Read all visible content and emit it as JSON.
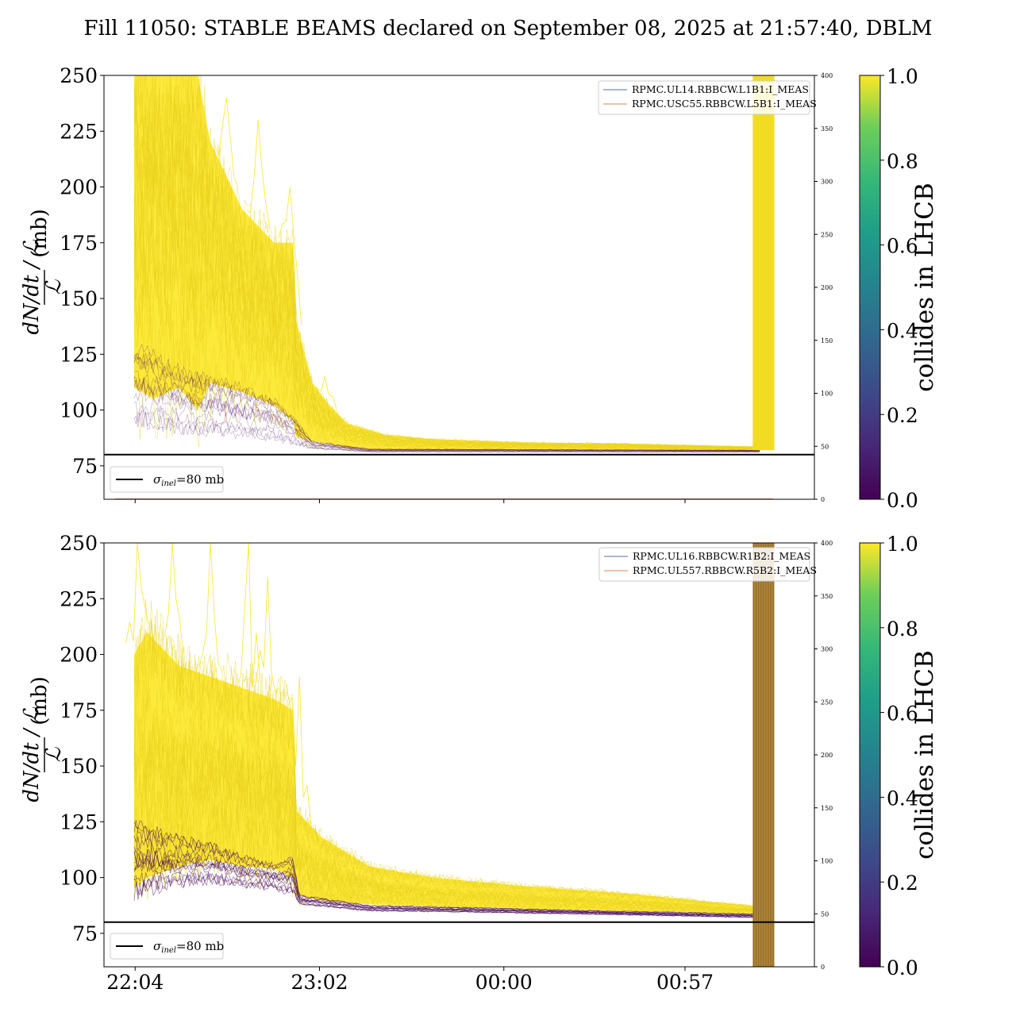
{
  "title": "Fill 11050: STABLE BEAMS declared on September 08, 2025 at 21:57:40, DBLM",
  "chart_data": {
    "type": "line",
    "title": "Fill 11050: STABLE BEAMS declared on September 08, 2025 at 21:57:40, DBLM",
    "x_tick_labels": [
      "22:04",
      "23:02",
      "00:00",
      "00:57"
    ],
    "x_ticks_minutes": [
      6.3,
      64.3,
      122.3,
      179.3
    ],
    "x_range_minutes": [
      -3.5,
      220
    ],
    "ylabel_fraction": "dN/dt / ℒ",
    "ylabel_unit": "(mb)",
    "ylim": [
      60,
      250
    ],
    "y_ticks": [
      75,
      100,
      125,
      150,
      175,
      200,
      225,
      250
    ],
    "secondary_ylim": [
      0,
      400
    ],
    "secondary_y_ticks": [
      0,
      50,
      100,
      150,
      200,
      250,
      300,
      350,
      400
    ],
    "reference_line": {
      "label": "σ_inel=80 mb",
      "label_main": "σ",
      "label_sub": "inel",
      "label_rest": "=80 mb",
      "value": 80,
      "color": "#000000"
    },
    "colorbar": {
      "label": "collides in LHCB",
      "min": 0.0,
      "max": 1.0,
      "ticks": [
        "0.0",
        "0.2",
        "0.4",
        "0.6",
        "0.8",
        "1.0"
      ],
      "colormap": "viridis"
    },
    "panels": [
      {
        "name": "top",
        "legend": [
          {
            "name": "RPMC.UL14.RBBCW.L1B1:I_MEAS",
            "color": "#4c72b0"
          },
          {
            "name": "RPMC.USC55.RBBCW.L5B1:I_MEAS",
            "color": "#dd8452"
          }
        ],
        "yellow_band": {
          "x0": 173.4,
          "x1": 200.6,
          "min": 82,
          "max": 250
        },
        "collide_band": {
          "x0": 200.6,
          "x1": 207.4,
          "min": 82,
          "max": 250
        },
        "purple_band": {
          "x0": 173.4,
          "x1": 200.6,
          "min": 81,
          "max": 134
        },
        "yellow_profile": [
          {
            "x": 6,
            "lo": 110,
            "hi": 250
          },
          {
            "x": 12,
            "lo": 105,
            "hi": 250
          },
          {
            "x": 20,
            "lo": 110,
            "hi": 250
          },
          {
            "x": 26,
            "lo": 100,
            "hi": 250
          },
          {
            "x": 30,
            "lo": 112,
            "hi": 220
          },
          {
            "x": 40,
            "lo": 108,
            "hi": 190
          },
          {
            "x": 50,
            "lo": 102,
            "hi": 175
          },
          {
            "x": 56,
            "lo": 95,
            "hi": 175
          },
          {
            "x": 57,
            "lo": 88,
            "hi": 140
          },
          {
            "x": 62,
            "lo": 86,
            "hi": 112
          },
          {
            "x": 67,
            "lo": 85,
            "hi": 103
          },
          {
            "x": 73,
            "lo": 83,
            "hi": 94
          },
          {
            "x": 85,
            "lo": 82,
            "hi": 89
          },
          {
            "x": 100,
            "lo": 82,
            "hi": 87
          },
          {
            "x": 130,
            "lo": 82,
            "hi": 85.5
          },
          {
            "x": 160,
            "lo": 82,
            "hi": 85
          },
          {
            "x": 190,
            "lo": 81.5,
            "hi": 84
          },
          {
            "x": 203,
            "lo": 81.5,
            "hi": 83.5
          }
        ],
        "purple_profile": [
          {
            "x": 6,
            "lo": 88,
            "hi": 128
          },
          {
            "x": 20,
            "lo": 86,
            "hi": 118
          },
          {
            "x": 35,
            "lo": 85,
            "hi": 112
          },
          {
            "x": 50,
            "lo": 84,
            "hi": 105
          },
          {
            "x": 57,
            "lo": 83,
            "hi": 95
          },
          {
            "x": 62,
            "lo": 82,
            "hi": 86
          },
          {
            "x": 80,
            "lo": 81,
            "hi": 82.5
          },
          {
            "x": 203,
            "lo": 81,
            "hi": 82
          }
        ],
        "yellow_outliers": [
          {
            "x": 8,
            "y": 250
          },
          {
            "x": 20,
            "y": 250
          },
          {
            "x": 35,
            "y": 240
          },
          {
            "x": 45,
            "y": 230
          },
          {
            "x": 55,
            "y": 200
          },
          {
            "x": 66,
            "y": 115
          }
        ]
      },
      {
        "name": "bottom",
        "legend": [
          {
            "name": "RPMC.UL16.RBBCW.R1B2:I_MEAS",
            "color": "#4c72b0"
          },
          {
            "name": "RPMC.UL557.RBBCW.R5B2:I_MEAS",
            "color": "#dd8452"
          }
        ],
        "yellow_band": {
          "x0": 173.4,
          "x1": 200.6,
          "min": 84,
          "max": 250
        },
        "collide_band": {
          "x0": 200.6,
          "x1": 207.4,
          "min": 60,
          "max": 250
        },
        "purple_band": {
          "x0": 173.4,
          "x1": 200.6,
          "min": 84,
          "max": 130
        },
        "yellow_profile": [
          {
            "x": 6,
            "lo": 95,
            "hi": 200
          },
          {
            "x": 10,
            "lo": 100,
            "hi": 210
          },
          {
            "x": 20,
            "lo": 105,
            "hi": 195
          },
          {
            "x": 30,
            "lo": 108,
            "hi": 190
          },
          {
            "x": 40,
            "lo": 105,
            "hi": 185
          },
          {
            "x": 50,
            "lo": 104,
            "hi": 180
          },
          {
            "x": 56,
            "lo": 100,
            "hi": 175
          },
          {
            "x": 57,
            "lo": 92,
            "hi": 130
          },
          {
            "x": 65,
            "lo": 90,
            "hi": 118
          },
          {
            "x": 80,
            "lo": 88,
            "hi": 105
          },
          {
            "x": 100,
            "lo": 87,
            "hi": 100
          },
          {
            "x": 130,
            "lo": 86,
            "hi": 96
          },
          {
            "x": 160,
            "lo": 85,
            "hi": 93
          },
          {
            "x": 195,
            "lo": 84,
            "hi": 88
          },
          {
            "x": 203,
            "lo": 84,
            "hi": 87
          }
        ],
        "purple_profile": [
          {
            "x": 6,
            "lo": 92,
            "hi": 130
          },
          {
            "x": 20,
            "lo": 96,
            "hi": 122
          },
          {
            "x": 30,
            "lo": 98,
            "hi": 118
          },
          {
            "x": 40,
            "lo": 96,
            "hi": 112
          },
          {
            "x": 50,
            "lo": 95,
            "hi": 108
          },
          {
            "x": 56,
            "lo": 92,
            "hi": 112
          },
          {
            "x": 58,
            "lo": 88,
            "hi": 93
          },
          {
            "x": 80,
            "lo": 85,
            "hi": 88
          },
          {
            "x": 110,
            "lo": 84.5,
            "hi": 87
          },
          {
            "x": 150,
            "lo": 83.5,
            "hi": 85.5
          },
          {
            "x": 203,
            "lo": 82,
            "hi": 84
          }
        ],
        "yellow_outliers": [
          {
            "x": 7,
            "y": 250
          },
          {
            "x": 18,
            "y": 250
          },
          {
            "x": 30,
            "y": 250
          },
          {
            "x": 42,
            "y": 250
          },
          {
            "x": 48,
            "y": 235
          },
          {
            "x": 58,
            "y": 190
          },
          {
            "x": 64,
            "y": 115
          }
        ]
      }
    ]
  }
}
